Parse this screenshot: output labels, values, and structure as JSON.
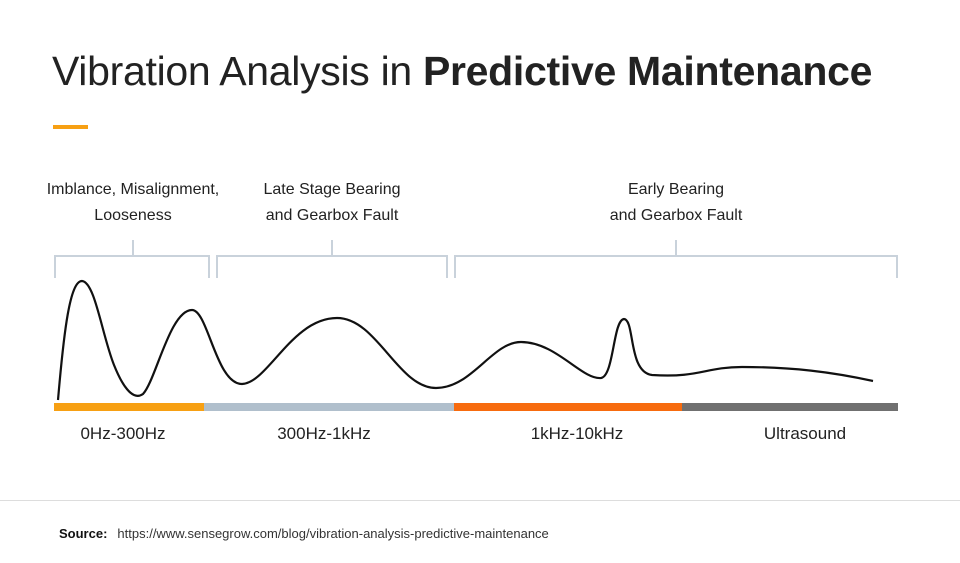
{
  "title": {
    "light": "Vibration Analysis in ",
    "bold": "Predictive Maintenance"
  },
  "categories": [
    {
      "line1": "Imblance, Misalignment,",
      "line2": "Looseness"
    },
    {
      "line1": "Late Stage Bearing",
      "line2": "and Gearbox Fault"
    },
    {
      "line1": "Early Bearing",
      "line2": "and Gearbox Fault"
    }
  ],
  "bands": [
    {
      "label": "0Hz-300Hz",
      "color": "#f7a013"
    },
    {
      "label": "300Hz-1kHz",
      "color": "#b0bfcc"
    },
    {
      "label": "1kHz-10kHz",
      "color": "#f76b0e"
    },
    {
      "label": "Ultrasound",
      "color": "#707070"
    }
  ],
  "source": {
    "label": "Source:",
    "url": "https://www.sensegrow.com/blog/vibration-analysis-predictive-maintenance"
  }
}
